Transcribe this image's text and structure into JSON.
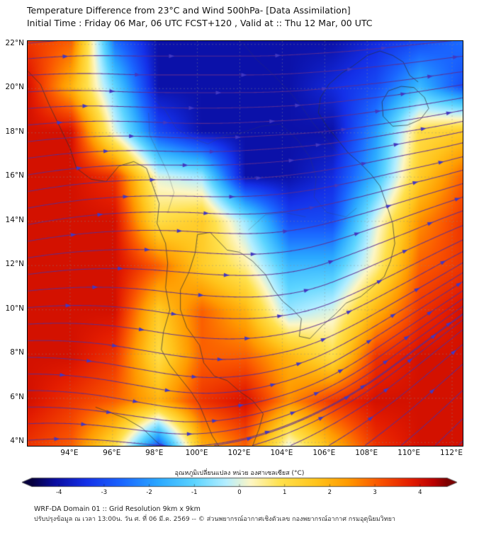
{
  "header": {
    "title_line1": "Temperature Difference from 23°C and Wind 500hPa- [Data Assimilation]",
    "title_line2": "Initial Time : Friday 06 Mar, 06 UTC FCST+120 , Valid at ::  Thu 12 Mar, 00 UTC"
  },
  "footer": {
    "line1": "WRF-DA Domain 01 :: Grid Resolution 9km x 9km",
    "line2": "ปรับปรุงข้อมูล ณ เวลา 13:00น. วัน ศ. ที่ 06 มี.ค. 2569 -- © ส่วนพยากรณ์อากาศเชิงตัวเลข กองพยากรณ์อากาศ กรมอุตุนิยมวิทยา"
  },
  "colorbar": {
    "label": "อุณหภูมิเปลี่ยนแปลง หน่วย องศาเซลเซียส (°C)",
    "tick_values": [
      -4,
      -3,
      -2,
      -1,
      0,
      1,
      2,
      3,
      4
    ],
    "min": -4.6,
    "max": 4.6
  },
  "chart_data": {
    "type": "heatmap",
    "title": "Temperature Difference from 23°C and Wind 500hPa- [Data Assimilation]",
    "units": "°C",
    "lon_range": [
      92.0,
      112.5
    ],
    "lat_range": [
      3.85,
      22.15
    ],
    "x_ticks": {
      "values": [
        94,
        96,
        98,
        100,
        102,
        104,
        106,
        108,
        110,
        112
      ],
      "labels": [
        "94°E",
        "96°E",
        "98°E",
        "100°E",
        "102°E",
        "104°E",
        "106°E",
        "108°E",
        "110°E",
        "112°E"
      ]
    },
    "y_ticks": {
      "values": [
        22,
        20,
        18,
        16,
        14,
        12,
        10,
        8,
        6,
        4
      ],
      "labels": [
        "22°N",
        "20°N",
        "18°N",
        "16°N",
        "14°N",
        "12°N",
        "10°N",
        "8°N",
        "6°N",
        "4°N"
      ]
    },
    "grid": {
      "lons": [
        92.0,
        94.05,
        96.1,
        98.15,
        100.2,
        102.25,
        104.3,
        106.35,
        108.4,
        110.45,
        112.5
      ],
      "lats": [
        22.15,
        20.12,
        18.08,
        16.05,
        14.02,
        11.98,
        9.95,
        7.92,
        5.88,
        3.85
      ],
      "temp_diff_c": [
        [
          3.5,
          3.0,
          -2.5,
          -4.0,
          -4.0,
          -4.0,
          -4.0,
          -4.0,
          -3.5,
          -3.0,
          -2.5
        ],
        [
          4.0,
          2.0,
          -1.0,
          -4.0,
          -4.0,
          -4.0,
          -4.0,
          -3.5,
          -3.0,
          -1.5,
          -3.0
        ],
        [
          4.0,
          4.0,
          0.0,
          -3.0,
          -4.0,
          -4.0,
          -4.0,
          -4.0,
          -2.0,
          1.0,
          1.5
        ],
        [
          4.0,
          4.0,
          3.5,
          0.0,
          -0.5,
          -4.0,
          -4.0,
          -3.5,
          -1.5,
          1.5,
          3.0
        ],
        [
          4.0,
          4.0,
          4.0,
          1.0,
          1.5,
          -0.5,
          -3.0,
          -3.0,
          0.0,
          2.5,
          3.5
        ],
        [
          4.0,
          4.0,
          4.0,
          3.0,
          1.5,
          0.5,
          -1.5,
          -1.5,
          0.5,
          3.0,
          3.5
        ],
        [
          4.0,
          4.0,
          4.0,
          1.5,
          3.0,
          2.0,
          -0.5,
          0.0,
          2.0,
          3.5,
          4.0
        ],
        [
          4.0,
          4.0,
          3.5,
          1.0,
          3.0,
          3.0,
          2.0,
          1.0,
          3.5,
          4.0,
          4.0
        ],
        [
          4.0,
          3.5,
          3.0,
          2.0,
          3.5,
          4.0,
          2.5,
          3.5,
          4.0,
          4.0,
          4.0
        ],
        [
          3.5,
          3.0,
          1.0,
          -3.0,
          2.0,
          3.0,
          0.0,
          2.0,
          3.5,
          4.0,
          4.0
        ]
      ],
      "wind_u": [
        [
          20,
          20,
          20,
          20,
          20,
          20,
          20,
          20,
          20,
          20,
          20
        ],
        [
          20,
          20,
          20,
          20,
          20,
          20,
          20,
          20,
          20,
          20,
          20
        ],
        [
          19,
          19,
          19,
          19,
          19,
          19,
          19,
          19,
          19,
          19,
          19
        ],
        [
          18,
          18,
          18,
          18,
          18,
          18,
          18,
          18,
          18,
          18,
          18
        ],
        [
          16,
          16,
          16,
          16,
          16,
          16,
          16,
          16,
          16,
          16,
          16
        ],
        [
          14,
          14,
          14,
          14,
          14,
          14,
          14,
          14,
          14,
          14,
          14
        ],
        [
          13,
          13,
          13,
          13,
          13,
          13,
          13,
          13,
          13,
          13,
          13
        ],
        [
          12,
          12,
          12,
          12,
          12,
          12,
          12,
          12,
          12,
          12,
          12
        ],
        [
          12,
          12,
          12,
          12,
          12,
          12,
          12,
          12,
          12,
          12,
          12
        ],
        [
          12,
          12,
          12,
          12,
          12,
          12,
          12,
          12,
          12,
          12,
          12
        ]
      ],
      "wind_v": [
        [
          2,
          1,
          0,
          0,
          0,
          0,
          1,
          1,
          2,
          2,
          2
        ],
        [
          1,
          0,
          -1,
          0,
          0,
          0,
          1,
          2,
          2,
          3,
          3
        ],
        [
          2,
          1,
          0,
          -1,
          0,
          1,
          1,
          2,
          3,
          3,
          4
        ],
        [
          3,
          2,
          1,
          0,
          0,
          1,
          2,
          3,
          4,
          4,
          5
        ],
        [
          3,
          2,
          1,
          0,
          -1,
          0,
          2,
          4,
          5,
          6,
          6
        ],
        [
          2,
          1,
          0,
          -1,
          -1,
          0,
          2,
          5,
          6,
          7,
          8
        ],
        [
          1,
          0,
          -1,
          -2,
          -1,
          0,
          2,
          5,
          7,
          8,
          9
        ],
        [
          0,
          -1,
          -2,
          -2,
          -1,
          1,
          3,
          6,
          8,
          9,
          10
        ],
        [
          0,
          -1,
          -2,
          -2,
          0,
          2,
          4,
          6,
          8,
          10,
          11
        ],
        [
          1,
          0,
          -1,
          -1,
          1,
          3,
          5,
          7,
          9,
          10,
          12
        ]
      ]
    },
    "colormap": [
      [
        -4.6,
        "#06003e"
      ],
      [
        -4.1,
        "#0a0c9e"
      ],
      [
        -3.4,
        "#1430e8"
      ],
      [
        -2.6,
        "#1a66ff"
      ],
      [
        -1.8,
        "#2aa8ff"
      ],
      [
        -1.0,
        "#5cd4ff"
      ],
      [
        -0.3,
        "#b4eeff"
      ],
      [
        0.25,
        "#fdf6c4"
      ],
      [
        0.9,
        "#ffe14d"
      ],
      [
        1.7,
        "#ffc41c"
      ],
      [
        2.4,
        "#ff9a00"
      ],
      [
        3.1,
        "#fa5500"
      ],
      [
        3.8,
        "#e31c00"
      ],
      [
        4.3,
        "#bb0000"
      ],
      [
        4.6,
        "#7d0000"
      ]
    ],
    "streamline_color": "rgba(92,45,145,0.9)",
    "arrow_color": "#4338c0",
    "gridline_color": "rgba(140,140,140,0.6)",
    "coast_color": "rgba(40,45,55,0.85)",
    "border_color": "rgba(60,65,85,0.5)",
    "stream_seeds": {
      "left_lats": [
        4.1,
        4.85,
        5.6,
        6.35,
        7.1,
        7.85,
        8.6,
        9.35,
        10.1,
        10.85,
        11.6,
        12.35,
        13.1,
        13.85,
        14.6,
        15.35,
        16.1,
        16.85,
        17.6,
        18.35,
        19.1,
        19.85,
        20.6,
        21.35,
        22.05
      ],
      "bottom_lons": [
        100.8,
        102.6,
        104.4,
        106.2,
        107.9,
        109.6,
        111.2,
        112.3
      ]
    },
    "coastlines": [
      [
        [
          92.0,
          20.8
        ],
        [
          92.6,
          20.2
        ],
        [
          93.0,
          19.3
        ],
        [
          93.5,
          18.3
        ],
        [
          94.0,
          17.3
        ],
        [
          94.3,
          16.4
        ],
        [
          95.0,
          15.9
        ],
        [
          95.7,
          15.8
        ],
        [
          96.3,
          16.5
        ],
        [
          97.0,
          16.7
        ],
        [
          97.6,
          16.4
        ],
        [
          97.9,
          15.6
        ],
        [
          98.2,
          14.8
        ],
        [
          98.1,
          13.9
        ],
        [
          98.5,
          13.0
        ],
        [
          98.6,
          12.1
        ],
        [
          98.5,
          11.0
        ],
        [
          98.7,
          10.0
        ],
        [
          98.4,
          9.0
        ],
        [
          98.3,
          8.2
        ],
        [
          98.7,
          7.5
        ],
        [
          99.2,
          6.9
        ],
        [
          99.7,
          6.3
        ],
        [
          100.1,
          5.7
        ],
        [
          100.4,
          5.0
        ],
        [
          100.7,
          4.3
        ],
        [
          101.0,
          3.85
        ]
      ],
      [
        [
          102.6,
          3.85
        ],
        [
          102.9,
          4.6
        ],
        [
          103.1,
          5.3
        ],
        [
          102.6,
          5.9
        ],
        [
          102.0,
          6.3
        ],
        [
          101.4,
          6.8
        ],
        [
          100.8,
          7.0
        ],
        [
          100.3,
          7.6
        ],
        [
          100.1,
          8.4
        ],
        [
          99.5,
          9.2
        ],
        [
          99.2,
          10.0
        ],
        [
          99.2,
          10.9
        ],
        [
          99.6,
          11.7
        ],
        [
          99.9,
          12.6
        ],
        [
          100.0,
          13.4
        ],
        [
          100.6,
          13.5
        ],
        [
          100.9,
          13.2
        ],
        [
          101.4,
          12.7
        ],
        [
          102.0,
          12.6
        ],
        [
          102.6,
          12.2
        ],
        [
          103.2,
          11.6
        ],
        [
          103.6,
          10.9
        ],
        [
          104.0,
          10.4
        ],
        [
          104.5,
          10.0
        ],
        [
          104.9,
          9.6
        ],
        [
          104.8,
          8.8
        ],
        [
          105.3,
          8.7
        ],
        [
          105.9,
          9.3
        ],
        [
          106.5,
          9.8
        ],
        [
          107.0,
          10.3
        ],
        [
          107.7,
          10.6
        ],
        [
          108.2,
          11.0
        ],
        [
          108.8,
          11.5
        ],
        [
          109.1,
          12.2
        ],
        [
          109.3,
          13.0
        ],
        [
          109.2,
          13.9
        ],
        [
          108.9,
          14.8
        ],
        [
          108.6,
          15.6
        ],
        [
          108.2,
          16.1
        ],
        [
          107.7,
          16.6
        ],
        [
          107.1,
          17.1
        ],
        [
          106.6,
          17.7
        ],
        [
          106.1,
          18.3
        ],
        [
          105.7,
          18.9
        ],
        [
          105.8,
          19.6
        ],
        [
          106.2,
          20.2
        ],
        [
          106.8,
          20.7
        ],
        [
          107.3,
          21.0
        ],
        [
          108.0,
          21.5
        ],
        [
          108.6,
          21.7
        ],
        [
          109.2,
          21.5
        ],
        [
          109.7,
          21.2
        ],
        [
          110.0,
          20.6
        ],
        [
          110.4,
          20.3
        ]
      ],
      [
        [
          108.7,
          19.4
        ],
        [
          109.0,
          19.9
        ],
        [
          109.6,
          20.1
        ],
        [
          110.2,
          20.05
        ],
        [
          110.7,
          19.6
        ],
        [
          110.9,
          19.1
        ],
        [
          110.5,
          18.6
        ],
        [
          109.9,
          18.35
        ],
        [
          109.2,
          18.3
        ],
        [
          108.75,
          18.75
        ],
        [
          108.7,
          19.4
        ]
      ],
      [
        [
          95.2,
          5.6
        ],
        [
          95.9,
          5.35
        ],
        [
          96.6,
          5.1
        ],
        [
          97.4,
          4.65
        ],
        [
          98.0,
          4.1
        ],
        [
          98.3,
          3.85
        ]
      ]
    ],
    "borders": [
      [
        [
          97.8,
          19.7
        ],
        [
          98.5,
          19.0
        ],
        [
          99.0,
          18.2
        ],
        [
          99.9,
          17.7
        ],
        [
          100.5,
          17.5
        ],
        [
          101.3,
          17.9
        ],
        [
          102.1,
          18.0
        ],
        [
          103.0,
          18.3
        ],
        [
          103.9,
          18.4
        ],
        [
          104.7,
          17.7
        ],
        [
          105.3,
          16.9
        ],
        [
          105.6,
          16.0
        ],
        [
          105.5,
          15.1
        ],
        [
          106.1,
          14.4
        ],
        [
          107.0,
          14.2
        ],
        [
          107.5,
          14.6
        ]
      ],
      [
        [
          102.1,
          22.1
        ],
        [
          102.8,
          21.3
        ],
        [
          103.5,
          20.7
        ],
        [
          104.3,
          19.9
        ],
        [
          104.9,
          19.2
        ],
        [
          105.4,
          18.5
        ],
        [
          106.0,
          17.8
        ],
        [
          106.6,
          17.1
        ]
      ],
      [
        [
          97.7,
          18.9
        ],
        [
          97.75,
          17.9
        ],
        [
          98.2,
          17.0
        ],
        [
          98.6,
          16.2
        ],
        [
          98.9,
          15.3
        ],
        [
          98.6,
          14.4
        ]
      ],
      [
        [
          102.4,
          13.6
        ],
        [
          103.2,
          14.3
        ],
        [
          104.1,
          14.4
        ],
        [
          105.1,
          14.2
        ]
      ]
    ]
  }
}
